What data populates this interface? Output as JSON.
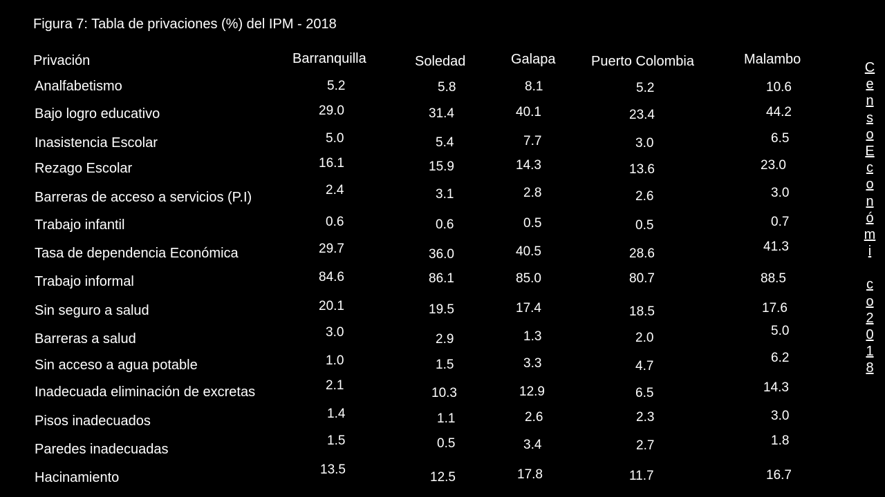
{
  "title": "Figura 7: Tabla de privaciones (%) del IPM - 2018",
  "columns": {
    "label": "Privación",
    "barranquilla": "Barranquilla",
    "soledad": "Soledad",
    "galapa": "Galapa",
    "puerto_colombia": "Puerto Colombia",
    "malambo": "Malambo"
  },
  "rows": [
    {
      "label": "Analfabetismo",
      "barranquilla": "5.2",
      "soledad": "5.8",
      "galapa": "8.1",
      "puerto_colombia": "5.2",
      "malambo": "10.6"
    },
    {
      "label": "Bajo logro educativo",
      "barranquilla": "29.0",
      "soledad": "31.4",
      "galapa": "40.1",
      "puerto_colombia": "23.4",
      "malambo": "44.2"
    },
    {
      "label": "Inasistencia Escolar",
      "barranquilla": "5.0",
      "soledad": "5.4",
      "galapa": "7.7",
      "puerto_colombia": "3.0",
      "malambo": "6.5"
    },
    {
      "label": "Rezago Escolar",
      "barranquilla": "16.1",
      "soledad": "15.9",
      "galapa": "14.3",
      "puerto_colombia": "13.6",
      "malambo": "23.0"
    },
    {
      "label": "Barreras de acceso a servicios (P.I)",
      "barranquilla": "2.4",
      "soledad": "3.1",
      "galapa": "2.8",
      "puerto_colombia": "2.6",
      "malambo": "3.0"
    },
    {
      "label": "Trabajo infantil",
      "barranquilla": "0.6",
      "soledad": "0.6",
      "galapa": "0.5",
      "puerto_colombia": "0.5",
      "malambo": "0.7"
    },
    {
      "label": "Tasa de dependencia Económica",
      "barranquilla": "29.7",
      "soledad": "36.0",
      "galapa": "40.5",
      "puerto_colombia": "28.6",
      "malambo": "41.3"
    },
    {
      "label": "Trabajo informal",
      "barranquilla": "84.6",
      "soledad": "86.1",
      "galapa": "85.0",
      "puerto_colombia": "80.7",
      "malambo": "88.5"
    },
    {
      "label": "Sin seguro a salud",
      "barranquilla": "20.1",
      "soledad": "19.5",
      "galapa": "17.4",
      "puerto_colombia": "18.5",
      "malambo": "17.6"
    },
    {
      "label": "Barreras a salud",
      "barranquilla": "3.0",
      "soledad": "2.9",
      "galapa": "1.3",
      "puerto_colombia": "2.0",
      "malambo": "5.0"
    },
    {
      "label": "Sin acceso a agua potable",
      "barranquilla": "1.0",
      "soledad": "1.5",
      "galapa": "3.3",
      "puerto_colombia": "4.7",
      "malambo": "6.2"
    },
    {
      "label": "Inadecuada eliminación de excretas",
      "barranquilla": "2.1",
      "soledad": "10.3",
      "galapa": "12.9",
      "puerto_colombia": "6.5",
      "malambo": "14.3"
    },
    {
      "label": "Pisos inadecuados",
      "barranquilla": "1.4",
      "soledad": "1.1",
      "galapa": "2.6",
      "puerto_colombia": "2.3",
      "malambo": "3.0"
    },
    {
      "label": "Paredes inadecuadas",
      "barranquilla": "1.5",
      "soledad": "0.5",
      "galapa": "3.4",
      "puerto_colombia": "2.7",
      "malambo": "1.8"
    },
    {
      "label": "Hacinamiento",
      "barranquilla": "13.5",
      "soledad": "12.5",
      "galapa": "17.8",
      "puerto_colombia": "11.7",
      "malambo": "16.7"
    }
  ],
  "side_note": "CensoEconómico2018"
}
